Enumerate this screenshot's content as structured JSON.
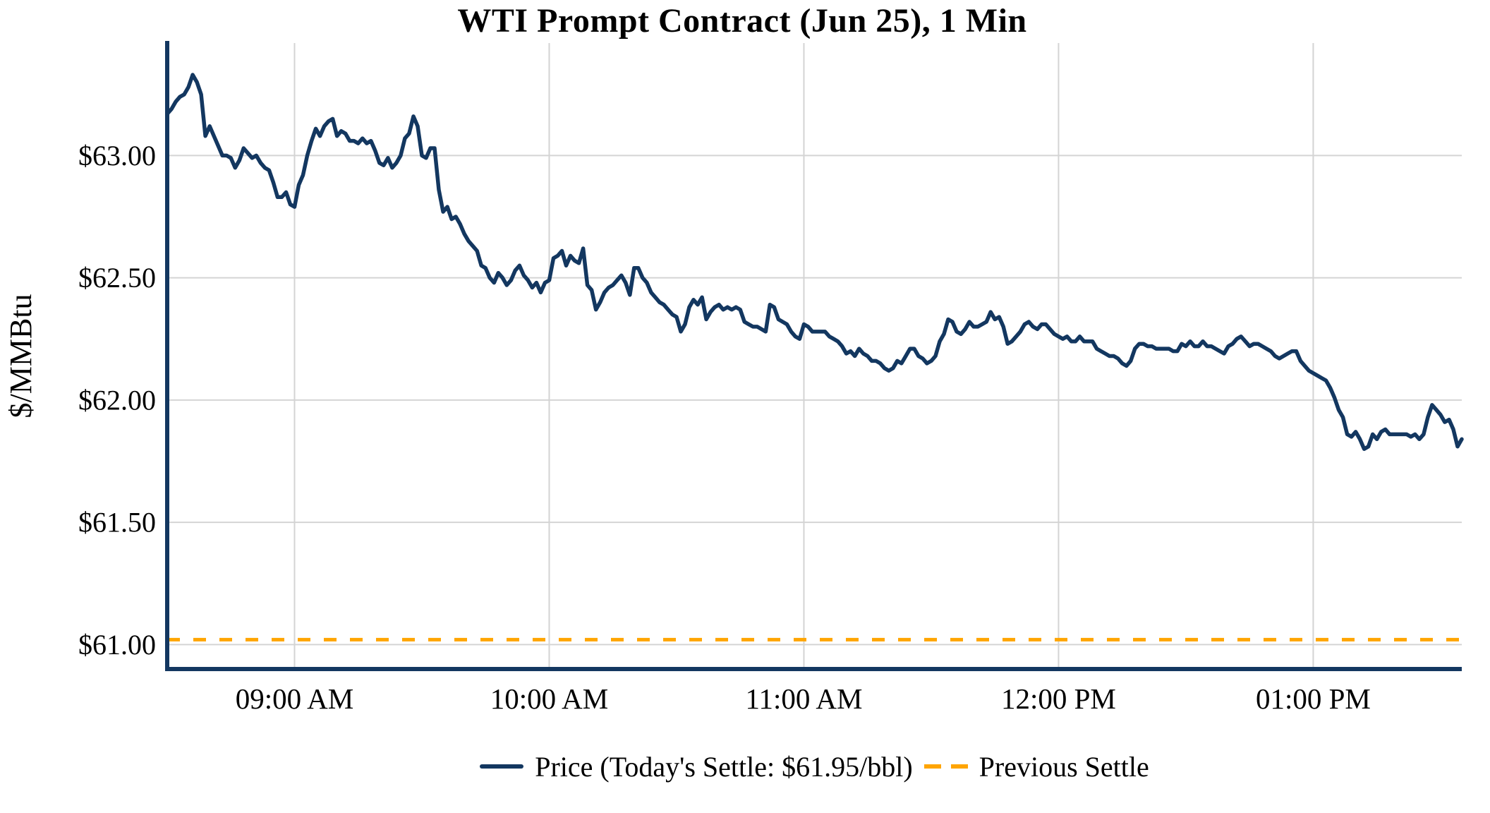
{
  "title": "WTI Prompt Contract (Jun 25), 1 Min",
  "legend": {
    "price_label": "Price (Today's Settle: $61.95/bbl)",
    "previous_settle_label": "Previous Settle"
  },
  "colors": {
    "price_line": "#133760",
    "previous_settle_line": "#FFA500",
    "gridline": "#D4D4D4",
    "axis_spine": "#133760",
    "text": "#000000",
    "background": "#FFFFFF"
  },
  "chart_data": {
    "type": "line",
    "title": "WTI Prompt Contract (Jun 25), 1 Min",
    "xlabel": "",
    "ylabel": "$/MMBtu",
    "grid": true,
    "legend_position": "bottom",
    "x_axis": {
      "start": "08:30",
      "end": "13:35",
      "ticks": [
        {
          "time": "09:00",
          "label": "09:00 AM"
        },
        {
          "time": "10:00",
          "label": "10:00 AM"
        },
        {
          "time": "11:00",
          "label": "11:00 AM"
        },
        {
          "time": "12:00",
          "label": "12:00 PM"
        },
        {
          "time": "13:00",
          "label": "01:00 PM"
        }
      ]
    },
    "y_axis": {
      "min": 60.9,
      "max": 63.46,
      "ticks": [
        {
          "value": 61.0,
          "label": "$61.00"
        },
        {
          "value": 61.5,
          "label": "$61.50"
        },
        {
          "value": 62.0,
          "label": "$62.00"
        },
        {
          "value": 62.5,
          "label": "$62.50"
        },
        {
          "value": 63.0,
          "label": "$63.00"
        }
      ]
    },
    "series": [
      {
        "name": "Price (Today's Settle: $61.95/bbl)",
        "style": "solid",
        "color": "#133760",
        "today_settle": 61.95,
        "start_time": "08:30",
        "interval_minutes": 1,
        "values": [
          63.17,
          63.19,
          63.22,
          63.24,
          63.25,
          63.28,
          63.33,
          63.3,
          63.25,
          63.08,
          63.12,
          63.08,
          63.04,
          63.0,
          63.0,
          62.99,
          62.95,
          62.98,
          63.03,
          63.01,
          62.99,
          63.0,
          62.97,
          62.95,
          62.94,
          62.89,
          62.83,
          62.83,
          62.85,
          62.8,
          62.79,
          62.88,
          62.92,
          63.0,
          63.06,
          63.11,
          63.08,
          63.12,
          63.14,
          63.15,
          63.08,
          63.1,
          63.09,
          63.06,
          63.06,
          63.05,
          63.07,
          63.05,
          63.06,
          63.02,
          62.97,
          62.96,
          62.99,
          62.95,
          62.97,
          63.0,
          63.07,
          63.09,
          63.16,
          63.12,
          63.0,
          62.99,
          63.03,
          63.03,
          62.86,
          62.77,
          62.79,
          62.74,
          62.75,
          62.72,
          62.68,
          62.65,
          62.63,
          62.61,
          62.55,
          62.54,
          62.5,
          62.48,
          62.52,
          62.5,
          62.47,
          62.49,
          62.53,
          62.55,
          62.51,
          62.49,
          62.46,
          62.48,
          62.44,
          62.48,
          62.49,
          62.58,
          62.59,
          62.61,
          62.55,
          62.59,
          62.57,
          62.56,
          62.62,
          62.47,
          62.45,
          62.37,
          62.4,
          62.44,
          62.46,
          62.47,
          62.49,
          62.51,
          62.48,
          62.43,
          62.54,
          62.54,
          62.5,
          62.48,
          62.44,
          62.42,
          62.4,
          62.39,
          62.37,
          62.35,
          62.34,
          62.28,
          62.31,
          62.38,
          62.41,
          62.39,
          62.42,
          62.33,
          62.36,
          62.38,
          62.39,
          62.37,
          62.38,
          62.37,
          62.38,
          62.37,
          62.32,
          62.31,
          62.3,
          62.3,
          62.29,
          62.28,
          62.39,
          62.38,
          62.33,
          62.32,
          62.31,
          62.28,
          62.26,
          62.25,
          62.31,
          62.3,
          62.28,
          62.28,
          62.28,
          62.28,
          62.26,
          62.25,
          62.24,
          62.22,
          62.19,
          62.2,
          62.18,
          62.21,
          62.19,
          62.18,
          62.16,
          62.16,
          62.15,
          62.13,
          62.12,
          62.13,
          62.16,
          62.15,
          62.18,
          62.21,
          62.21,
          62.18,
          62.17,
          62.15,
          62.16,
          62.18,
          62.24,
          62.27,
          62.33,
          62.32,
          62.28,
          62.27,
          62.29,
          62.32,
          62.3,
          62.3,
          62.31,
          62.32,
          62.36,
          62.33,
          62.34,
          62.3,
          62.23,
          62.24,
          62.26,
          62.28,
          62.31,
          62.32,
          62.3,
          62.29,
          62.31,
          62.31,
          62.29,
          62.27,
          62.26,
          62.25,
          62.26,
          62.24,
          62.24,
          62.26,
          62.24,
          62.24,
          62.24,
          62.21,
          62.2,
          62.19,
          62.18,
          62.18,
          62.17,
          62.15,
          62.14,
          62.16,
          62.21,
          62.23,
          62.23,
          62.22,
          62.22,
          62.21,
          62.21,
          62.21,
          62.21,
          62.2,
          62.2,
          62.23,
          62.22,
          62.24,
          62.22,
          62.22,
          62.24,
          62.22,
          62.22,
          62.21,
          62.2,
          62.19,
          62.22,
          62.23,
          62.25,
          62.26,
          62.24,
          62.22,
          62.23,
          62.23,
          62.22,
          62.21,
          62.2,
          62.18,
          62.17,
          62.18,
          62.19,
          62.2,
          62.2,
          62.16,
          62.14,
          62.12,
          62.11,
          62.1,
          62.09,
          62.08,
          62.05,
          62.01,
          61.96,
          61.93,
          61.86,
          61.85,
          61.87,
          61.84,
          61.8,
          61.81,
          61.86,
          61.84,
          61.87,
          61.88,
          61.86,
          61.86,
          61.86,
          61.86,
          61.86,
          61.85,
          61.86,
          61.84,
          61.86,
          61.93,
          61.98,
          61.96,
          61.94,
          61.91,
          61.92,
          61.88,
          61.81,
          61.84
        ]
      },
      {
        "name": "Previous Settle",
        "style": "dashed",
        "color": "#FFA500",
        "value": 61.02
      }
    ]
  }
}
